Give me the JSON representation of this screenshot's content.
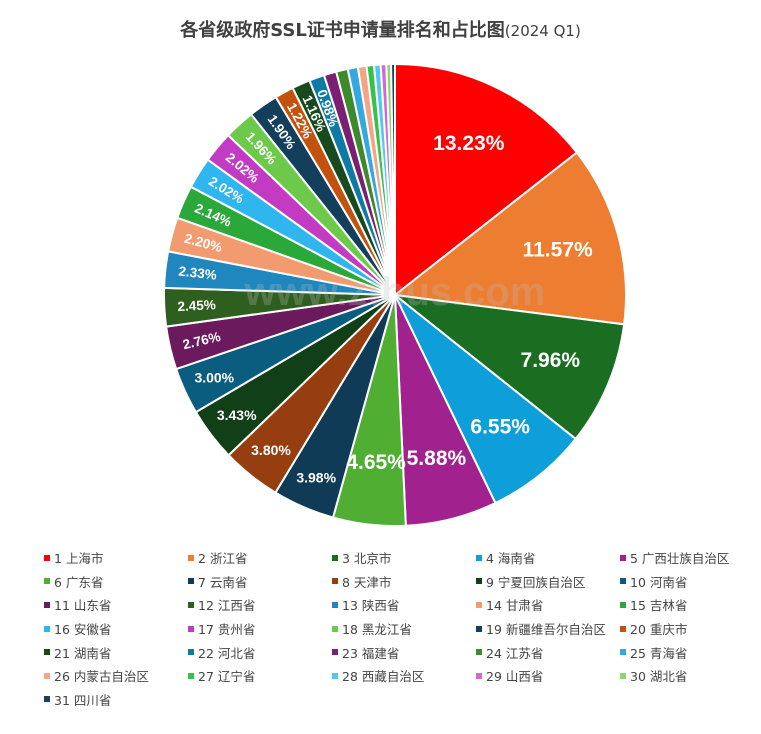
{
  "chart_data": {
    "type": "pie",
    "title": "各省级政府SSL证书申请量排名和占比图",
    "subtitle": "(2024 Q1)",
    "watermark": "www.zthus.com",
    "legend_position": "bottom",
    "slices": [
      {
        "label": "1 上海市",
        "value": 13.23,
        "color": "#ff0000",
        "display": "13.23%"
      },
      {
        "label": "2 浙江省",
        "value": 11.57,
        "color": "#ed7d31",
        "display": "11.57%"
      },
      {
        "label": "3 北京市",
        "value": 7.96,
        "color": "#1b6d22",
        "display": "7.96%"
      },
      {
        "label": "4 海南省",
        "value": 6.55,
        "color": "#0e9fda",
        "display": "6.55%"
      },
      {
        "label": "5 广西壮族自治区",
        "value": 5.88,
        "color": "#a1228f",
        "display": "5.88%"
      },
      {
        "label": "6 广东省",
        "value": 4.65,
        "color": "#50ae33",
        "display": "4.65%"
      },
      {
        "label": "7 云南省",
        "value": 3.98,
        "color": "#0f3b56",
        "display": "3.98%"
      },
      {
        "label": "8 天津市",
        "value": 3.8,
        "color": "#973e11",
        "display": "3.80%"
      },
      {
        "label": "9 宁夏回族自治区",
        "value": 3.43,
        "color": "#113f18",
        "display": "3.43%"
      },
      {
        "label": "10 河南省",
        "value": 3.0,
        "color": "#0b5d80",
        "display": "3.00%"
      },
      {
        "label": "11 山东省",
        "value": 2.76,
        "color": "#6b1a5e",
        "display": "2.76%"
      },
      {
        "label": "12 江西省",
        "value": 2.45,
        "color": "#2f5f1f",
        "display": "2.45%"
      },
      {
        "label": "13 陕西省",
        "value": 2.33,
        "color": "#1f87bd",
        "display": "2.33%"
      },
      {
        "label": "14 甘肃省",
        "value": 2.2,
        "color": "#f29b70",
        "display": "2.20%"
      },
      {
        "label": "15 吉林省",
        "value": 2.14,
        "color": "#2aa83a",
        "display": "2.14%"
      },
      {
        "label": "16 安徽省",
        "value": 2.02,
        "color": "#2fb6ee",
        "display": "2.02%"
      },
      {
        "label": "17 贵州省",
        "value": 2.02,
        "color": "#c33ac3",
        "display": "2.02%"
      },
      {
        "label": "18 黑龙江省",
        "value": 1.96,
        "color": "#6dc94a",
        "display": "1.96%"
      },
      {
        "label": "19 新疆维吾尔自治区",
        "value": 1.9,
        "color": "#133e5c",
        "display": "1.90%"
      },
      {
        "label": "20 重庆市",
        "value": 1.22,
        "color": "#c4520f",
        "display": "1.22%"
      },
      {
        "label": "21 湖南省",
        "value": 1.16,
        "color": "#174a1f",
        "display": "1.16%"
      },
      {
        "label": "22 河北省",
        "value": 0.98,
        "color": "#107aa6",
        "display": "0.98%"
      },
      {
        "label": "23 福建省",
        "value": 0.8,
        "color": "#7a1f72",
        "display": ""
      },
      {
        "label": "24 江苏省",
        "value": 0.75,
        "color": "#3c8a2c",
        "display": ""
      },
      {
        "label": "25 青海省",
        "value": 0.65,
        "color": "#35a8e0",
        "display": ""
      },
      {
        "label": "26 内蒙古自治区",
        "value": 0.55,
        "color": "#f4a585",
        "display": ""
      },
      {
        "label": "27 辽宁省",
        "value": 0.48,
        "color": "#35c24a",
        "display": ""
      },
      {
        "label": "28 西藏自治区",
        "value": 0.42,
        "color": "#56c6f0",
        "display": ""
      },
      {
        "label": "29 山西省",
        "value": 0.36,
        "color": "#d267d6",
        "display": ""
      },
      {
        "label": "30 湖北省",
        "value": 0.3,
        "color": "#8ed66e",
        "display": ""
      },
      {
        "label": "31 四川省",
        "value": 0.25,
        "color": "#1a3e5e",
        "display": ""
      }
    ]
  }
}
